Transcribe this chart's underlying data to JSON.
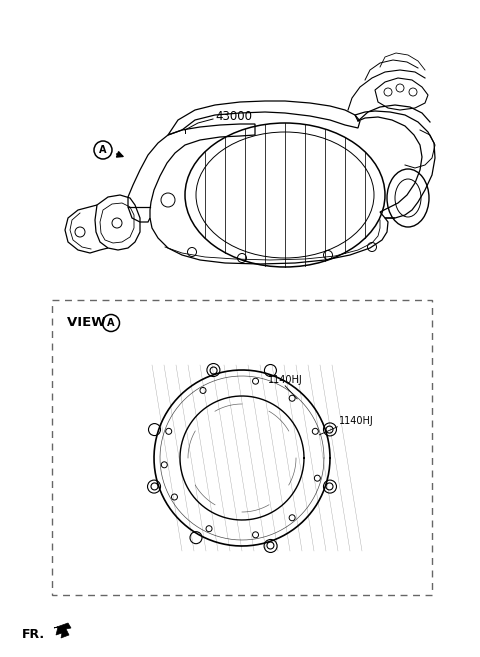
{
  "bg_color": "#ffffff",
  "main_part_label": "43000",
  "view_label": "VIEW",
  "circle_label_A": "A",
  "bolt_label_1": "1140HJ",
  "bolt_label_2": "1140HJ",
  "fr_label": "FR.",
  "line_color": "#000000",
  "dashed_box_color": "#666666",
  "fig_width": 4.8,
  "fig_height": 6.57,
  "dpi": 100
}
